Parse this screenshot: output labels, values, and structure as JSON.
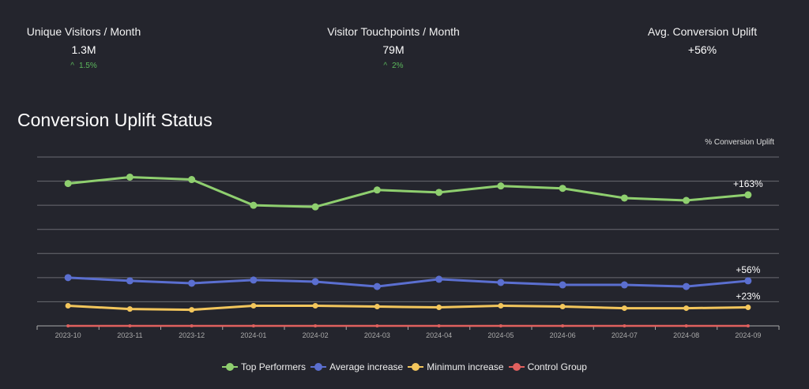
{
  "kpis": [
    {
      "title": "Unique Visitors / Month",
      "value": "1.3M",
      "delta": "1.5%",
      "trend": "up"
    },
    {
      "title": "Visitor Touchpoints / Month",
      "value": "79M",
      "delta": "2%",
      "trend": "up"
    },
    {
      "title": "Avg. Conversion Uplift",
      "value": "+56%"
    }
  ],
  "chart_data": {
    "type": "line",
    "title": "Conversion Uplift Status",
    "ylabel": "% Conversion Uplift",
    "xlabel": "",
    "grid": true,
    "legend_position": "bottom",
    "categories": [
      "2023-10",
      "2023-11",
      "2023-12",
      "2024-01",
      "2024-02",
      "2024-03",
      "2024-04",
      "2024-05",
      "2024-06",
      "2024-07",
      "2024-08",
      "2024-09"
    ],
    "series": [
      {
        "name": "Top Performers",
        "color": "#8fcf6f",
        "values": [
          177,
          185,
          182,
          150,
          148,
          169,
          166,
          174,
          171,
          159,
          156,
          163
        ],
        "end_label": "+163%"
      },
      {
        "name": "Average increase",
        "color": "#5b6fd0",
        "values": [
          60,
          56,
          53,
          57,
          55,
          49,
          58,
          54,
          51,
          51,
          49,
          56
        ],
        "end_label": "+56%"
      },
      {
        "name": "Minimum increase",
        "color": "#f3c65c",
        "values": [
          25,
          21,
          20,
          25,
          25,
          24,
          23,
          25,
          24,
          22,
          22,
          23
        ],
        "end_label": "+23%"
      },
      {
        "name": "Control Group",
        "color": "#e0605e",
        "values": [
          0,
          0,
          0,
          0,
          0,
          0,
          0,
          0,
          0,
          0,
          0,
          0
        ]
      }
    ]
  }
}
